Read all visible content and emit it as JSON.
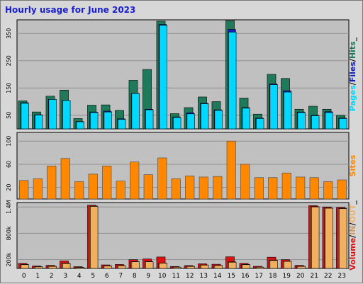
{
  "title": "Hourly usage for June 2023",
  "colors": {
    "hits": "#1f7a5a",
    "files": "#1020c0",
    "pages": "#00d8ff",
    "sites": "#ff8800",
    "volume": "#dd1111",
    "in": "#cc9966",
    "out": "#f0b060",
    "plot_bg": "#c0c0c0",
    "grid": "#8f8f8f"
  },
  "chart_data": [
    {
      "type": "bar",
      "panel": "top",
      "ylabel_parts": [
        "Pages",
        "/",
        "Files",
        "/",
        "Hits",
        "_"
      ],
      "y_ticks": [
        "50",
        "150",
        "250",
        "350"
      ],
      "ylim": [
        0,
        400
      ],
      "categories": [
        "0",
        "1",
        "2",
        "3",
        "4",
        "5",
        "6",
        "7",
        "8",
        "9",
        "10",
        "11",
        "12",
        "13",
        "14",
        "15",
        "16",
        "17",
        "18",
        "19",
        "20",
        "21",
        "22",
        "23"
      ],
      "series": [
        {
          "name": "Hits",
          "values": [
            103,
            62,
            120,
            142,
            38,
            87,
            88,
            68,
            178,
            218,
            395,
            56,
            78,
            117,
            100,
            397,
            113,
            54,
            200,
            185,
            72,
            83,
            72,
            50
          ]
        },
        {
          "name": "Files",
          "values": [
            96,
            52,
            108,
            104,
            27,
            62,
            65,
            37,
            131,
            72,
            383,
            44,
            59,
            94,
            70,
            365,
            78,
            40,
            165,
            140,
            62,
            50,
            63,
            40
          ]
        },
        {
          "name": "Pages",
          "values": [
            94,
            51,
            108,
            104,
            26,
            60,
            62,
            35,
            130,
            70,
            380,
            42,
            55,
            92,
            68,
            355,
            76,
            38,
            162,
            135,
            60,
            48,
            60,
            38
          ]
        }
      ]
    },
    {
      "type": "bar",
      "panel": "middle",
      "ylabel": "Sites",
      "y_ticks": [
        "20",
        "60",
        "100"
      ],
      "ylim": [
        0,
        115
      ],
      "categories": [
        "0",
        "1",
        "2",
        "3",
        "4",
        "5",
        "6",
        "7",
        "8",
        "9",
        "10",
        "11",
        "12",
        "13",
        "14",
        "15",
        "16",
        "17",
        "18",
        "19",
        "20",
        "21",
        "22",
        "23"
      ],
      "series": [
        {
          "name": "Sites",
          "values": [
            32,
            35,
            57,
            70,
            30,
            43,
            57,
            31,
            64,
            42,
            71,
            35,
            40,
            38,
            39,
            100,
            60,
            37,
            37,
            45,
            38,
            37,
            30,
            33
          ]
        }
      ]
    },
    {
      "type": "bar",
      "panel": "bottom",
      "ylabel_parts": [
        "Volume",
        "/",
        "IN",
        "/",
        "OUT",
        "_"
      ],
      "y_ticks": [
        "200k",
        "800k",
        "1.4M"
      ],
      "ylim": [
        0,
        1500000
      ],
      "categories": [
        "0",
        "1",
        "2",
        "3",
        "4",
        "5",
        "6",
        "7",
        "8",
        "9",
        "10",
        "11",
        "12",
        "13",
        "14",
        "15",
        "16",
        "17",
        "18",
        "19",
        "20",
        "21",
        "22",
        "23"
      ],
      "series": [
        {
          "name": "Volume",
          "values": [
            115000,
            55000,
            70000,
            170000,
            40000,
            1440000,
            80000,
            90000,
            200000,
            215000,
            260000,
            45000,
            65000,
            105000,
            95000,
            265000,
            115000,
            48000,
            255000,
            200000,
            70000,
            1430000,
            1400000,
            1390000
          ]
        },
        {
          "name": "IN",
          "values": [
            90000,
            40000,
            50000,
            120000,
            25000,
            1420000,
            60000,
            65000,
            155000,
            160000,
            125000,
            30000,
            50000,
            80000,
            70000,
            150000,
            90000,
            30000,
            190000,
            165000,
            50000,
            1410000,
            1380000,
            1370000
          ]
        },
        {
          "name": "OUT",
          "values": [
            85000,
            35000,
            45000,
            110000,
            20000,
            1410000,
            55000,
            60000,
            150000,
            150000,
            120000,
            28000,
            45000,
            75000,
            65000,
            140000,
            85000,
            28000,
            180000,
            160000,
            45000,
            1400000,
            1370000,
            1360000
          ]
        }
      ]
    }
  ]
}
